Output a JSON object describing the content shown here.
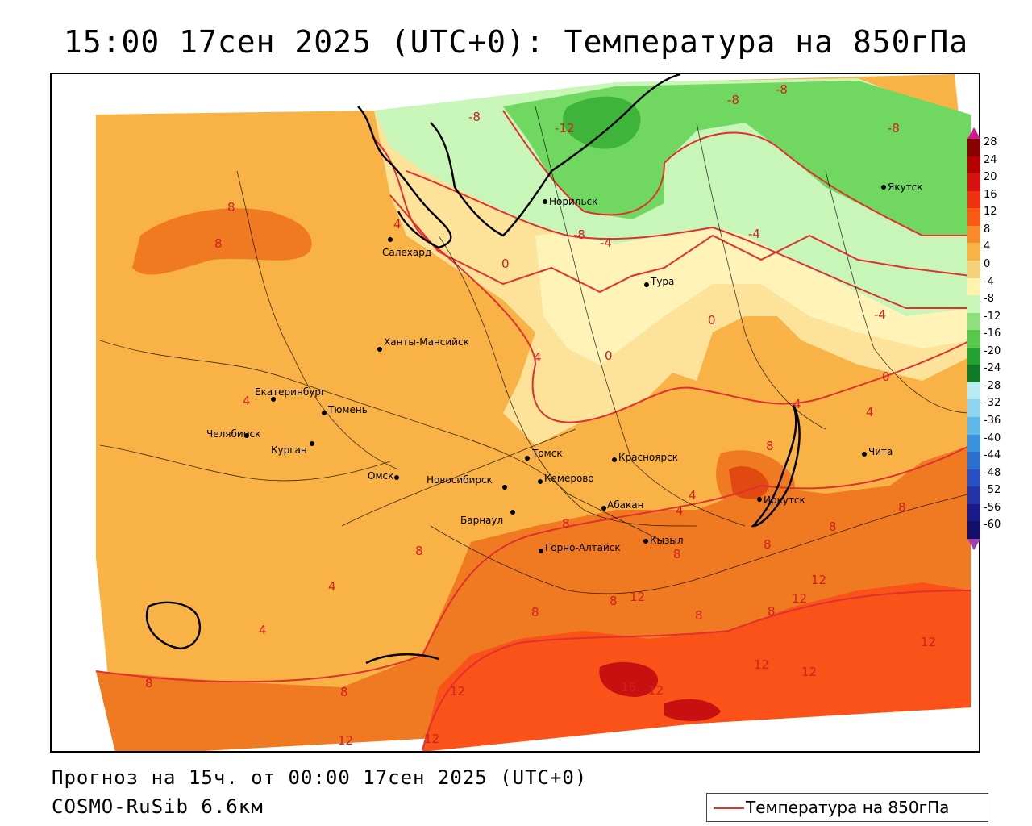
{
  "title": "15:00 17сен 2025 (UTC+0): Температура на 850гПа",
  "footer_line1": "Прогноз на 15ч. от 00:00 17сен 2025 (UTC+0)",
  "footer_line2": "COSMO-RuSib 6.6км",
  "legend_label": "Температура на 850гПа",
  "legend_line_color": "#e03030",
  "colorbar": {
    "labels": [
      "28",
      "24",
      "20",
      "16",
      "12",
      "8",
      "4",
      "0",
      "-4",
      "-8",
      "-12",
      "-16",
      "-20",
      "-24",
      "-28",
      "-32",
      "-36",
      "-40",
      "-44",
      "-48",
      "-52",
      "-56",
      "-60"
    ],
    "colors": [
      "#8b0000",
      "#b40000",
      "#d81010",
      "#f03010",
      "#fb5a14",
      "#fa8a2a",
      "#f8b245",
      "#f6d37a",
      "#fff3b0",
      "#c8f5b8",
      "#8fe27d",
      "#57c84a",
      "#22a030",
      "#0e7a28",
      "#b8ecf4",
      "#8ed6f0",
      "#5fb8ea",
      "#3892e0",
      "#2a6ed0",
      "#2850c4",
      "#2234a8",
      "#1a1a8c",
      "#12106a"
    ],
    "arrow_top_color": "#d01890",
    "arrow_bottom_color": "#a040b0"
  },
  "cities": [
    {
      "name": "Норильск"
    },
    {
      "name": "Якутск"
    },
    {
      "name": "Салехард"
    },
    {
      "name": "Тура"
    },
    {
      "name": "Ханты-Мансийск"
    },
    {
      "name": "Екатеринбург"
    },
    {
      "name": "Тюмень"
    },
    {
      "name": "Челябинск"
    },
    {
      "name": "Курган"
    },
    {
      "name": "Омск"
    },
    {
      "name": "Томск"
    },
    {
      "name": "Красноярск"
    },
    {
      "name": "Новосибирск"
    },
    {
      "name": "Кемерово"
    },
    {
      "name": "Абакан"
    },
    {
      "name": "Иркутск"
    },
    {
      "name": "Чита"
    },
    {
      "name": "Барнаул"
    },
    {
      "name": "Горно-Алтайск"
    },
    {
      "name": "Кызыл"
    }
  ],
  "isotherm_labels": [
    "-8",
    "-12",
    "-8",
    "-8",
    "-8",
    "-8",
    "-4",
    "-4",
    "-4",
    "4",
    "0",
    "0",
    "4",
    "0",
    "0",
    "8",
    "8",
    "4",
    "4",
    "4",
    "4",
    "8",
    "4",
    "4",
    "8",
    "8",
    "8",
    "8",
    "8",
    "8",
    "8",
    "8",
    "12",
    "12",
    "12",
    "12",
    "12",
    "16",
    "12",
    "12",
    "12",
    "12",
    "8",
    "8",
    "8",
    "4",
    "8",
    "12"
  ]
}
